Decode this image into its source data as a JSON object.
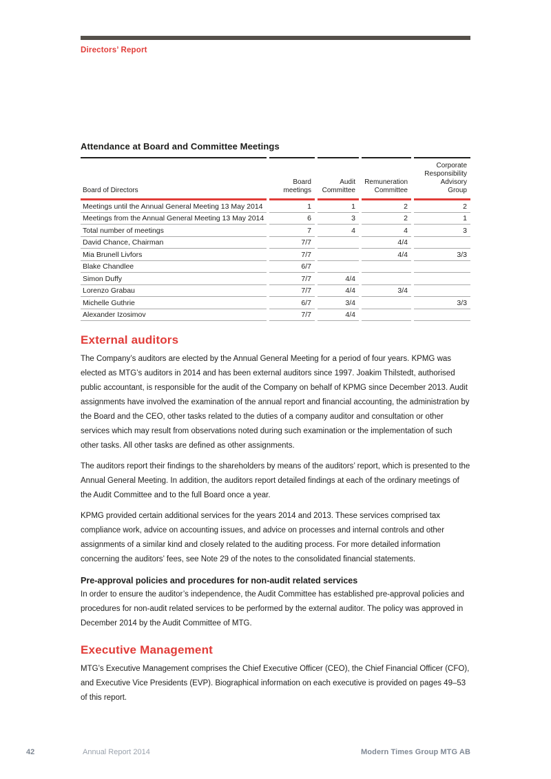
{
  "colors": {
    "accent_red": "#e13c38",
    "bar_brown": "#55504a",
    "text_ink": "#1d1d1b",
    "rule_gray": "#a9a9a9",
    "footer_gray": "#7f8894",
    "footer_light": "#9aa2ac"
  },
  "header": {
    "section_label": "Directors’ Report"
  },
  "table": {
    "title": "Attendance at Board and Committee Meetings",
    "columns": [
      "Board of Directors",
      "Board\nmeetings",
      "Audit\nCommittee",
      "Remuneration\nCommittee",
      "Corporate\nResponsibility\nAdvisory\nGroup"
    ],
    "rows": [
      [
        "Meetings until the Annual General Meeting 13 May 2014",
        "1",
        "1",
        "2",
        "2"
      ],
      [
        "Meetings from the Annual General Meeting 13 May 2014",
        "6",
        "3",
        "2",
        "1"
      ],
      [
        "Total number of meetings",
        "7",
        "4",
        "4",
        "3"
      ],
      [
        "David Chance, Chairman",
        "7/7",
        "",
        "4/4",
        ""
      ],
      [
        "Mia Brunell Livfors",
        "7/7",
        "",
        "4/4",
        "3/3"
      ],
      [
        "Blake Chandlee",
        "6/7",
        "",
        "",
        ""
      ],
      [
        "Simon Duffy",
        "7/7",
        "4/4",
        "",
        ""
      ],
      [
        "Lorenzo Grabau",
        "7/7",
        "4/4",
        "3/4",
        ""
      ],
      [
        "Michelle Guthrie",
        "6/7",
        "3/4",
        "",
        "3/3"
      ],
      [
        "Alexander Izosimov",
        "7/7",
        "4/4",
        "",
        ""
      ]
    ]
  },
  "sections": {
    "external_auditors": {
      "heading": "External auditors",
      "paragraphs": [
        "The Company’s auditors are elected by the Annual General Meeting for a period of four years. KPMG was elected as MTG’s auditors in 2014 and has been external auditors since 1997. Joakim Thilstedt, authorised public accountant, is responsible for the audit of the Company on behalf of KPMG since December 2013. Audit assignments have involved the examination of the annual report and financial accounting, the administration by the Board and the CEO, other tasks related to the duties of a company auditor and consultation or other services which may result from observations noted during such examination or the implementation of such other tasks. All other tasks are defined as other assignments.",
        "The auditors report their findings to the shareholders by means of the auditors’ report, which is presented to the Annual General Meeting. In addition, the auditors report detailed findings at each of the ordinary meetings of the Audit Committee and to the full Board once a year.",
        "KPMG provided certain additional services for the years 2014 and 2013. These services comprised tax compliance work, advice on accounting issues, and advice on processes and internal controls and other assignments of a similar kind and closely related to the auditing process. For more detailed information concerning the auditors’ fees, see Note 29 of the notes to the consolidated financial statements."
      ]
    },
    "pre_approval": {
      "heading": "Pre-approval policies and procedures for non-audit related services",
      "paragraph": "In order to ensure the auditor’s independence, the Audit Committee has established pre-approval policies and procedures for non-audit related services to be performed by the external auditor. The policy was approved in December 2014 by the Audit Committee of MTG."
    },
    "executive_management": {
      "heading": "Executive Management",
      "paragraph": "MTG’s Executive Management comprises the Chief Executive Officer (CEO), the Chief Financial Officer (CFO), and Executive Vice Presidents (EVP). Biographical information on each executive is provided on pages 49–53 of this report."
    }
  },
  "footer": {
    "page_number": "42",
    "report_label": "Annual Report 2014",
    "company": "Modern Times Group MTG AB"
  }
}
